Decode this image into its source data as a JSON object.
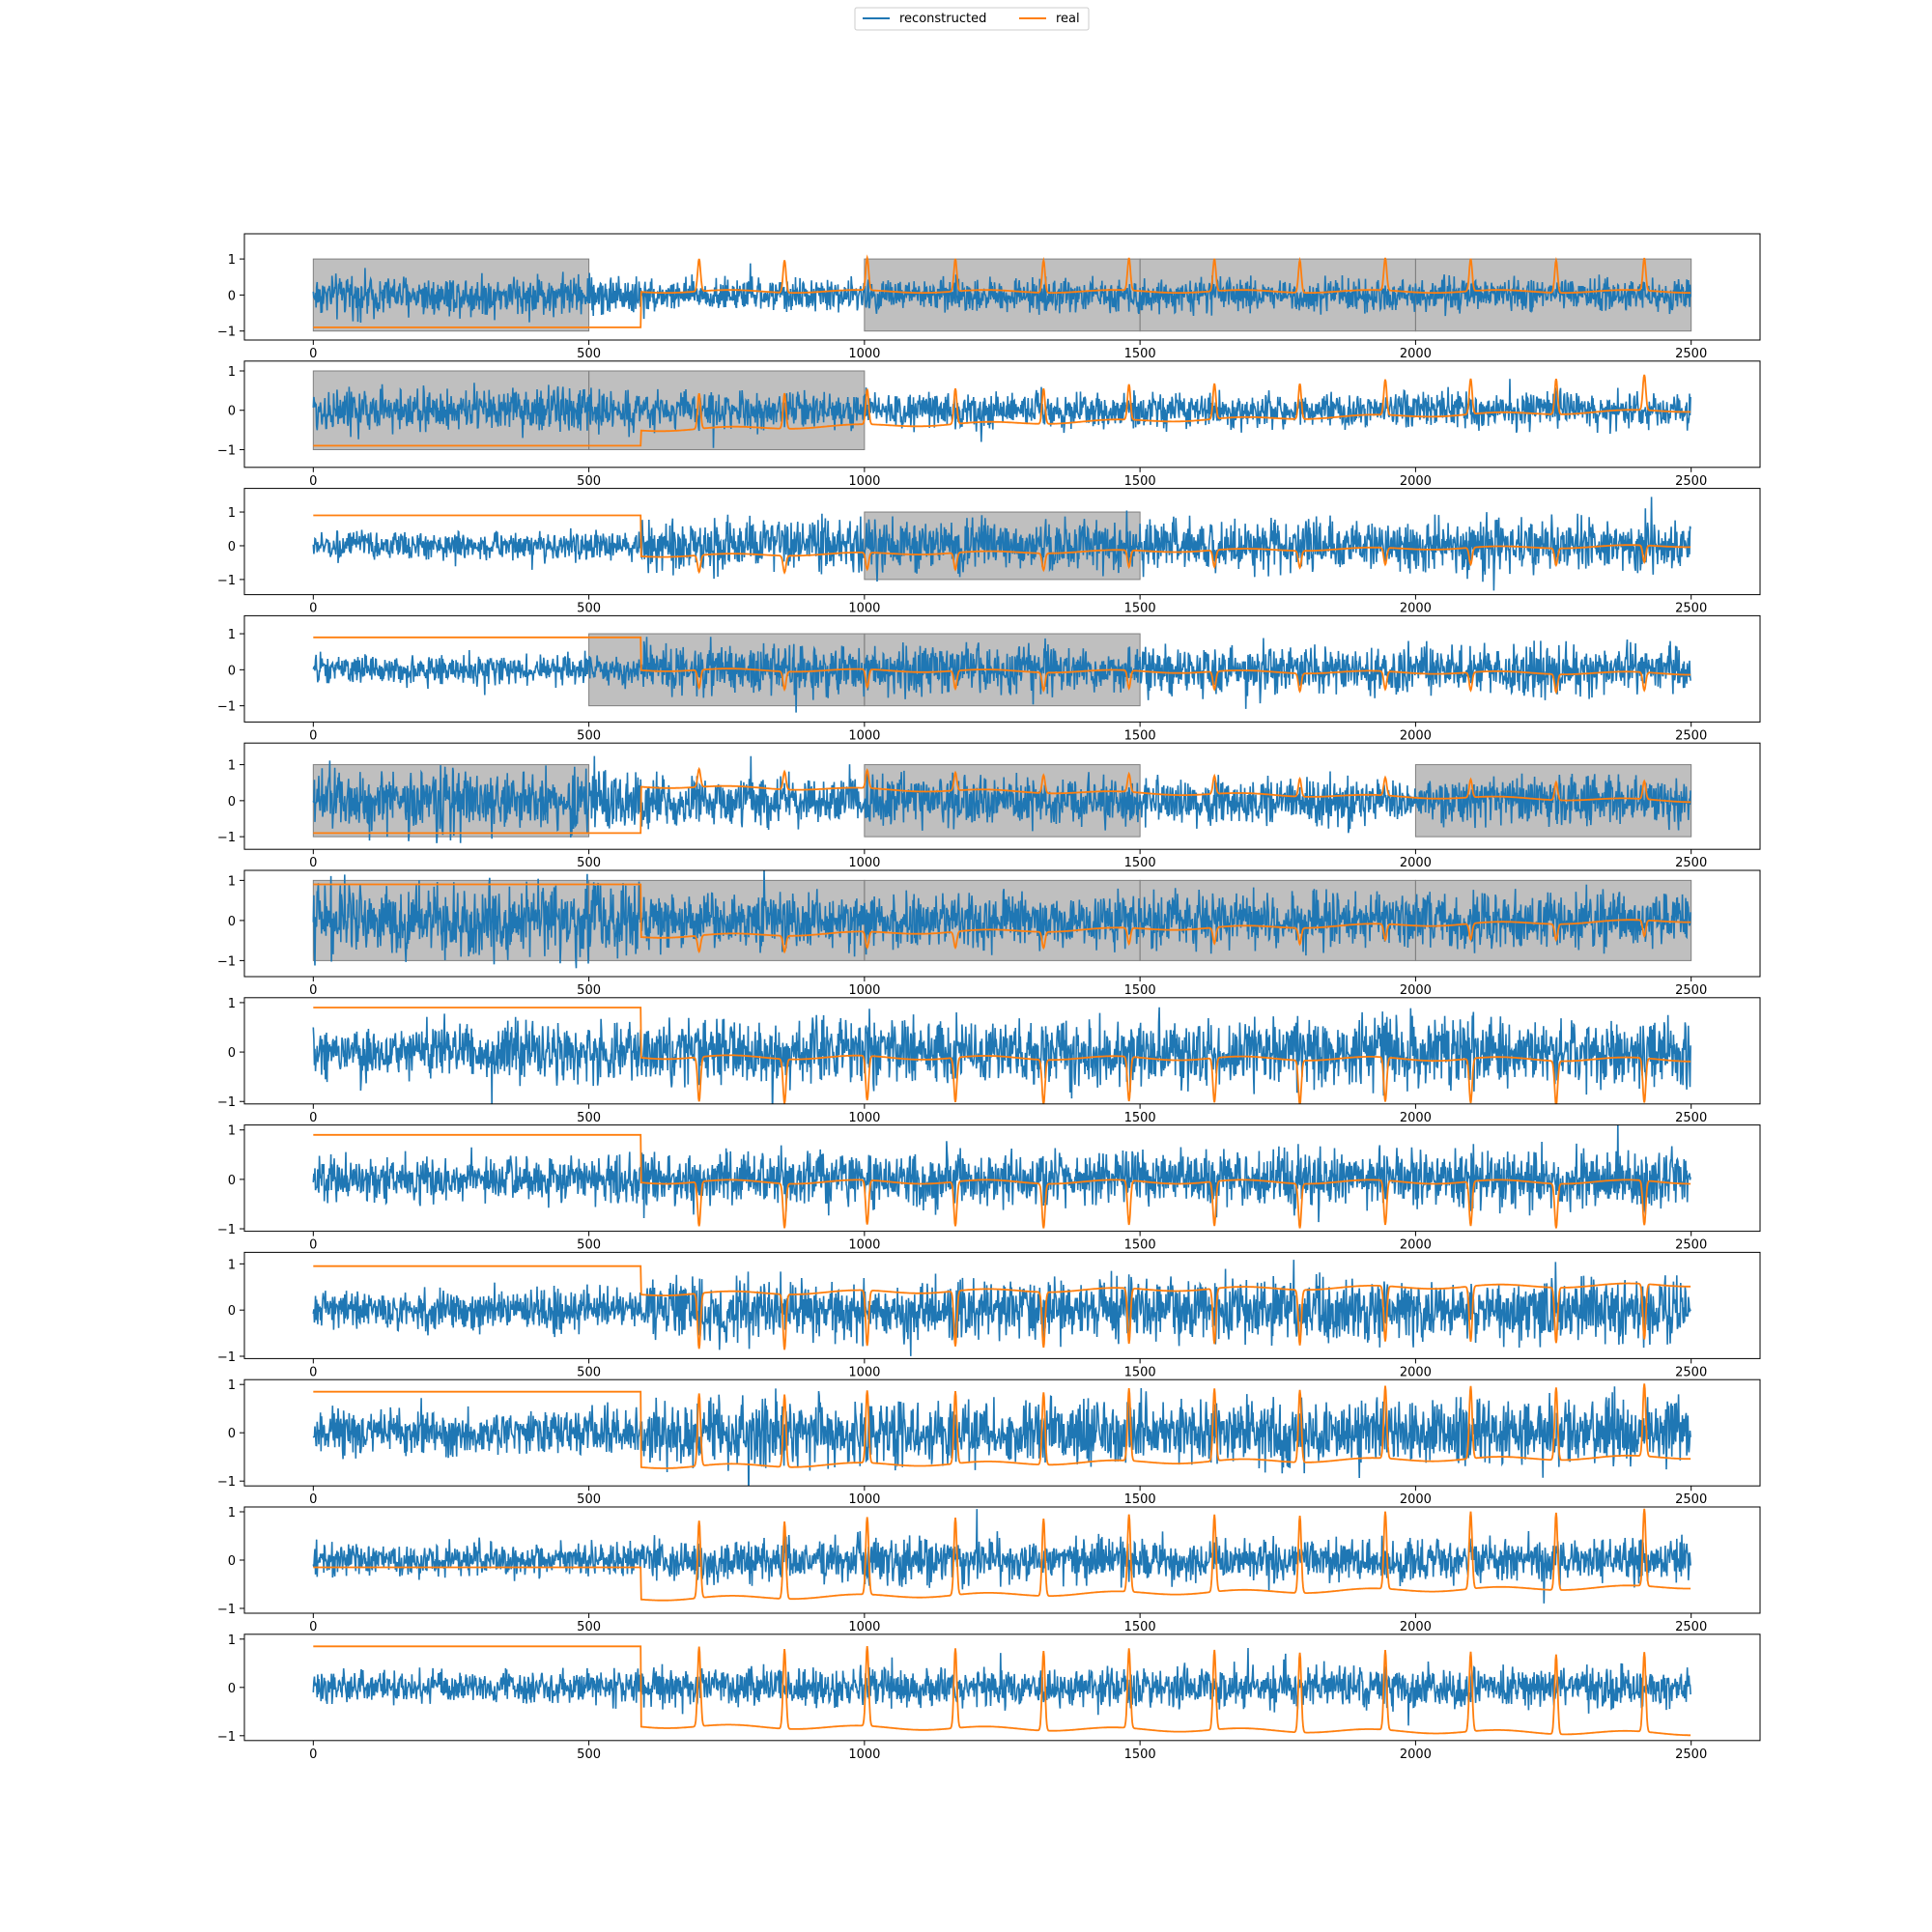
{
  "legend": {
    "placement": "top-center",
    "entries": [
      {
        "label": "reconstructed",
        "color": "#1f77b4"
      },
      {
        "label": "real",
        "color": "#ff7f0e"
      }
    ]
  },
  "chart_data": {
    "type": "line",
    "layout": "12 vertically stacked subplots sharing x-range",
    "series_colors": {
      "reconstructed": "#1f77b4",
      "real": "#ff7f0e"
    },
    "shade_color": "#808080",
    "xlim": [
      -125,
      2625
    ],
    "xticks": [
      0,
      500,
      1000,
      1500,
      2000,
      2500
    ],
    "n_points": 2500,
    "real_switch_x": 595,
    "beat_positions": [
      700,
      855,
      1005,
      1165,
      1325,
      1480,
      1635,
      1790,
      1945,
      2100,
      2255,
      2415
    ],
    "subplots": [
      {
        "ylim": [
          -1.25,
          1.7
        ],
        "yticks": [
          -1,
          0,
          1
        ],
        "shaded_regions": [
          [
            0,
            500
          ],
          [
            1000,
            1500
          ],
          [
            1500,
            2000
          ],
          [
            2000,
            2500
          ]
        ],
        "real_pre_level": -0.9,
        "real_post_start": 0.1,
        "real_post_end": 0.1,
        "beat_amplitude": 0.9,
        "recon_noise": 0.25,
        "recon_noise_late": 0.2
      },
      {
        "ylim": [
          -1.45,
          1.25
        ],
        "yticks": [
          -1,
          0,
          1
        ],
        "shaded_regions": [
          [
            0,
            500
          ],
          [
            500,
            1000
          ]
        ],
        "real_pre_level": -0.9,
        "real_post_start": -0.5,
        "real_post_end": 0.0,
        "beat_amplitude": 0.9,
        "recon_noise": 0.25,
        "recon_noise_late": 0.2
      },
      {
        "ylim": [
          -1.45,
          1.7
        ],
        "yticks": [
          -1,
          0,
          1
        ],
        "shaded_regions": [
          [
            1000,
            1500
          ]
        ],
        "real_pre_level": 0.9,
        "real_post_start": -0.3,
        "real_post_end": 0.0,
        "beat_amplitude": -0.5,
        "recon_noise": 0.18,
        "recon_noise_late": 0.35
      },
      {
        "ylim": [
          -1.45,
          1.5
        ],
        "yticks": [
          -1,
          0,
          1
        ],
        "shaded_regions": [
          [
            500,
            1000
          ],
          [
            1000,
            1500
          ]
        ],
        "real_pre_level": 0.9,
        "real_post_start": 0.0,
        "real_post_end": -0.1,
        "beat_amplitude": -0.5,
        "recon_noise": 0.18,
        "recon_noise_late": 0.3
      },
      {
        "ylim": [
          -1.35,
          1.6
        ],
        "yticks": [
          -1,
          0,
          1
        ],
        "shaded_regions": [
          [
            0,
            500
          ],
          [
            1000,
            1500
          ],
          [
            2000,
            2500
          ]
        ],
        "real_pre_level": -0.9,
        "real_post_start": 0.4,
        "real_post_end": 0.0,
        "beat_amplitude": 0.5,
        "recon_noise": 0.4,
        "recon_noise_late": 0.3
      },
      {
        "ylim": [
          -1.4,
          1.25
        ],
        "yticks": [
          -1,
          0,
          1
        ],
        "shaded_regions": [
          [
            0,
            500
          ],
          [
            500,
            1000
          ],
          [
            1000,
            1500
          ],
          [
            1500,
            2000
          ],
          [
            2000,
            2500
          ]
        ],
        "real_pre_level": 0.9,
        "real_post_start": -0.4,
        "real_post_end": 0.0,
        "beat_amplitude": -0.4,
        "recon_noise": 0.4,
        "recon_noise_late": 0.3
      },
      {
        "ylim": [
          -1.05,
          1.1
        ],
        "yticks": [
          -1,
          0,
          1
        ],
        "shaded_regions": [],
        "real_pre_level": 0.9,
        "real_post_start": -0.1,
        "real_post_end": -0.15,
        "beat_amplitude": -0.9,
        "recon_noise": 0.25,
        "recon_noise_late": 0.3
      },
      {
        "ylim": [
          -1.05,
          1.1
        ],
        "yticks": [
          -1,
          0,
          1
        ],
        "shaded_regions": [],
        "real_pre_level": 0.9,
        "real_post_start": -0.05,
        "real_post_end": -0.05,
        "beat_amplitude": -0.9,
        "recon_noise": 0.2,
        "recon_noise_late": 0.25
      },
      {
        "ylim": [
          -1.05,
          1.25
        ],
        "yticks": [
          -1,
          0,
          1
        ],
        "shaded_regions": [],
        "real_pre_level": 0.95,
        "real_post_start": 0.35,
        "real_post_end": 0.55,
        "beat_amplitude": -1.2,
        "recon_noise": 0.2,
        "recon_noise_late": 0.3
      },
      {
        "ylim": [
          -1.1,
          1.1
        ],
        "yticks": [
          -1,
          0,
          1
        ],
        "shaded_regions": [],
        "real_pre_level": 0.85,
        "real_post_start": -0.7,
        "real_post_end": -0.5,
        "beat_amplitude": 1.5,
        "recon_noise": 0.2,
        "recon_noise_late": 0.3
      },
      {
        "ylim": [
          -1.1,
          1.1
        ],
        "yticks": [
          -1,
          0,
          1
        ],
        "shaded_regions": [],
        "real_pre_level": -0.15,
        "real_post_start": -0.8,
        "real_post_end": -0.55,
        "beat_amplitude": 1.6,
        "recon_noise": 0.15,
        "recon_noise_late": 0.2
      },
      {
        "ylim": [
          -1.1,
          1.1
        ],
        "yticks": [
          -1,
          0,
          1
        ],
        "shaded_regions": [],
        "real_pre_level": 0.85,
        "real_post_start": -0.8,
        "real_post_end": -0.95,
        "beat_amplitude": 1.65,
        "recon_noise": 0.15,
        "recon_noise_late": 0.18
      }
    ]
  }
}
